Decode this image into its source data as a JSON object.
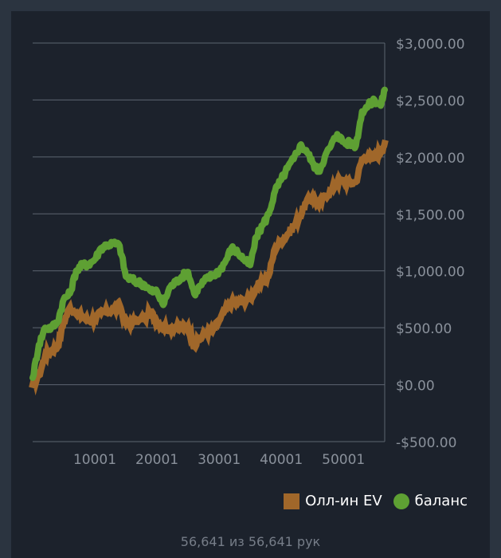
{
  "chart_data": {
    "type": "line",
    "y_ticks": [
      -500,
      0,
      500,
      1000,
      1500,
      2000,
      2500,
      3000
    ],
    "y_tick_labels": [
      "-$500.00",
      "$0.00",
      "$500.00",
      "$1,000.00",
      "$1,500.00",
      "$2,000.00",
      "$2,500.00",
      "$3,000.00"
    ],
    "x_ticks": [
      10001,
      20001,
      30001,
      40001,
      50001
    ],
    "x_tick_labels": [
      "10001",
      "20001",
      "30001",
      "40001",
      "50001"
    ],
    "xlim": [
      1,
      56641
    ],
    "ylim": [
      -500,
      3000
    ],
    "grid": true,
    "legend_position": "bottom-right",
    "series": [
      {
        "name": "Олл-ин EV",
        "color": "#a0672a",
        "marker": "square",
        "points": [
          [
            1,
            0
          ],
          [
            1000,
            80
          ],
          [
            2000,
            250
          ],
          [
            3000,
            300
          ],
          [
            4000,
            330
          ],
          [
            5000,
            550
          ],
          [
            6000,
            680
          ],
          [
            7000,
            620
          ],
          [
            8000,
            600
          ],
          [
            9000,
            560
          ],
          [
            10000,
            580
          ],
          [
            11000,
            630
          ],
          [
            12000,
            640
          ],
          [
            13000,
            660
          ],
          [
            14000,
            700
          ],
          [
            15000,
            540
          ],
          [
            16000,
            540
          ],
          [
            17000,
            560
          ],
          [
            18000,
            580
          ],
          [
            19000,
            640
          ],
          [
            20000,
            550
          ],
          [
            21000,
            510
          ],
          [
            22000,
            490
          ],
          [
            23000,
            510
          ],
          [
            24000,
            500
          ],
          [
            25000,
            510
          ],
          [
            26000,
            340
          ],
          [
            27000,
            410
          ],
          [
            28000,
            460
          ],
          [
            29000,
            480
          ],
          [
            30000,
            560
          ],
          [
            31000,
            660
          ],
          [
            32000,
            720
          ],
          [
            33000,
            720
          ],
          [
            34000,
            740
          ],
          [
            35000,
            760
          ],
          [
            36000,
            850
          ],
          [
            37000,
            900
          ],
          [
            38000,
            960
          ],
          [
            39000,
            1200
          ],
          [
            40000,
            1260
          ],
          [
            41000,
            1320
          ],
          [
            42000,
            1390
          ],
          [
            43000,
            1480
          ],
          [
            44000,
            1600
          ],
          [
            45000,
            1650
          ],
          [
            46000,
            1580
          ],
          [
            47000,
            1660
          ],
          [
            48000,
            1700
          ],
          [
            49000,
            1780
          ],
          [
            50000,
            1790
          ],
          [
            51000,
            1770
          ],
          [
            52000,
            1780
          ],
          [
            53000,
            1980
          ],
          [
            54000,
            2010
          ],
          [
            55000,
            1990
          ],
          [
            56000,
            2050
          ],
          [
            56641,
            2120
          ]
        ]
      },
      {
        "name": "баланс",
        "color": "#5ea033",
        "marker": "circle",
        "points": [
          [
            1,
            60
          ],
          [
            1000,
            350
          ],
          [
            2000,
            500
          ],
          [
            3000,
            500
          ],
          [
            4000,
            550
          ],
          [
            5000,
            750
          ],
          [
            6000,
            800
          ],
          [
            7000,
            1000
          ],
          [
            8000,
            1050
          ],
          [
            9000,
            1060
          ],
          [
            10000,
            1100
          ],
          [
            11000,
            1200
          ],
          [
            12000,
            1230
          ],
          [
            13000,
            1240
          ],
          [
            14000,
            1220
          ],
          [
            15000,
            950
          ],
          [
            16000,
            920
          ],
          [
            17000,
            900
          ],
          [
            18000,
            880
          ],
          [
            19000,
            820
          ],
          [
            20000,
            820
          ],
          [
            21000,
            700
          ],
          [
            22000,
            850
          ],
          [
            23000,
            900
          ],
          [
            24000,
            950
          ],
          [
            25000,
            990
          ],
          [
            26000,
            800
          ],
          [
            27000,
            870
          ],
          [
            28000,
            930
          ],
          [
            29000,
            960
          ],
          [
            30000,
            1000
          ],
          [
            31000,
            1080
          ],
          [
            32000,
            1200
          ],
          [
            33000,
            1160
          ],
          [
            34000,
            1100
          ],
          [
            35000,
            1050
          ],
          [
            36000,
            1300
          ],
          [
            37000,
            1400
          ],
          [
            38000,
            1500
          ],
          [
            39000,
            1700
          ],
          [
            40000,
            1800
          ],
          [
            41000,
            1900
          ],
          [
            42000,
            1980
          ],
          [
            43000,
            2100
          ],
          [
            44000,
            2060
          ],
          [
            45000,
            1950
          ],
          [
            46000,
            1870
          ],
          [
            47000,
            2000
          ],
          [
            48000,
            2100
          ],
          [
            49000,
            2200
          ],
          [
            50000,
            2130
          ],
          [
            51000,
            2120
          ],
          [
            52000,
            2100
          ],
          [
            53000,
            2400
          ],
          [
            54000,
            2450
          ],
          [
            55000,
            2500
          ],
          [
            56000,
            2450
          ],
          [
            56641,
            2590
          ]
        ]
      }
    ]
  },
  "footer": {
    "hands_text": "56,641 из 56,641 рук"
  }
}
